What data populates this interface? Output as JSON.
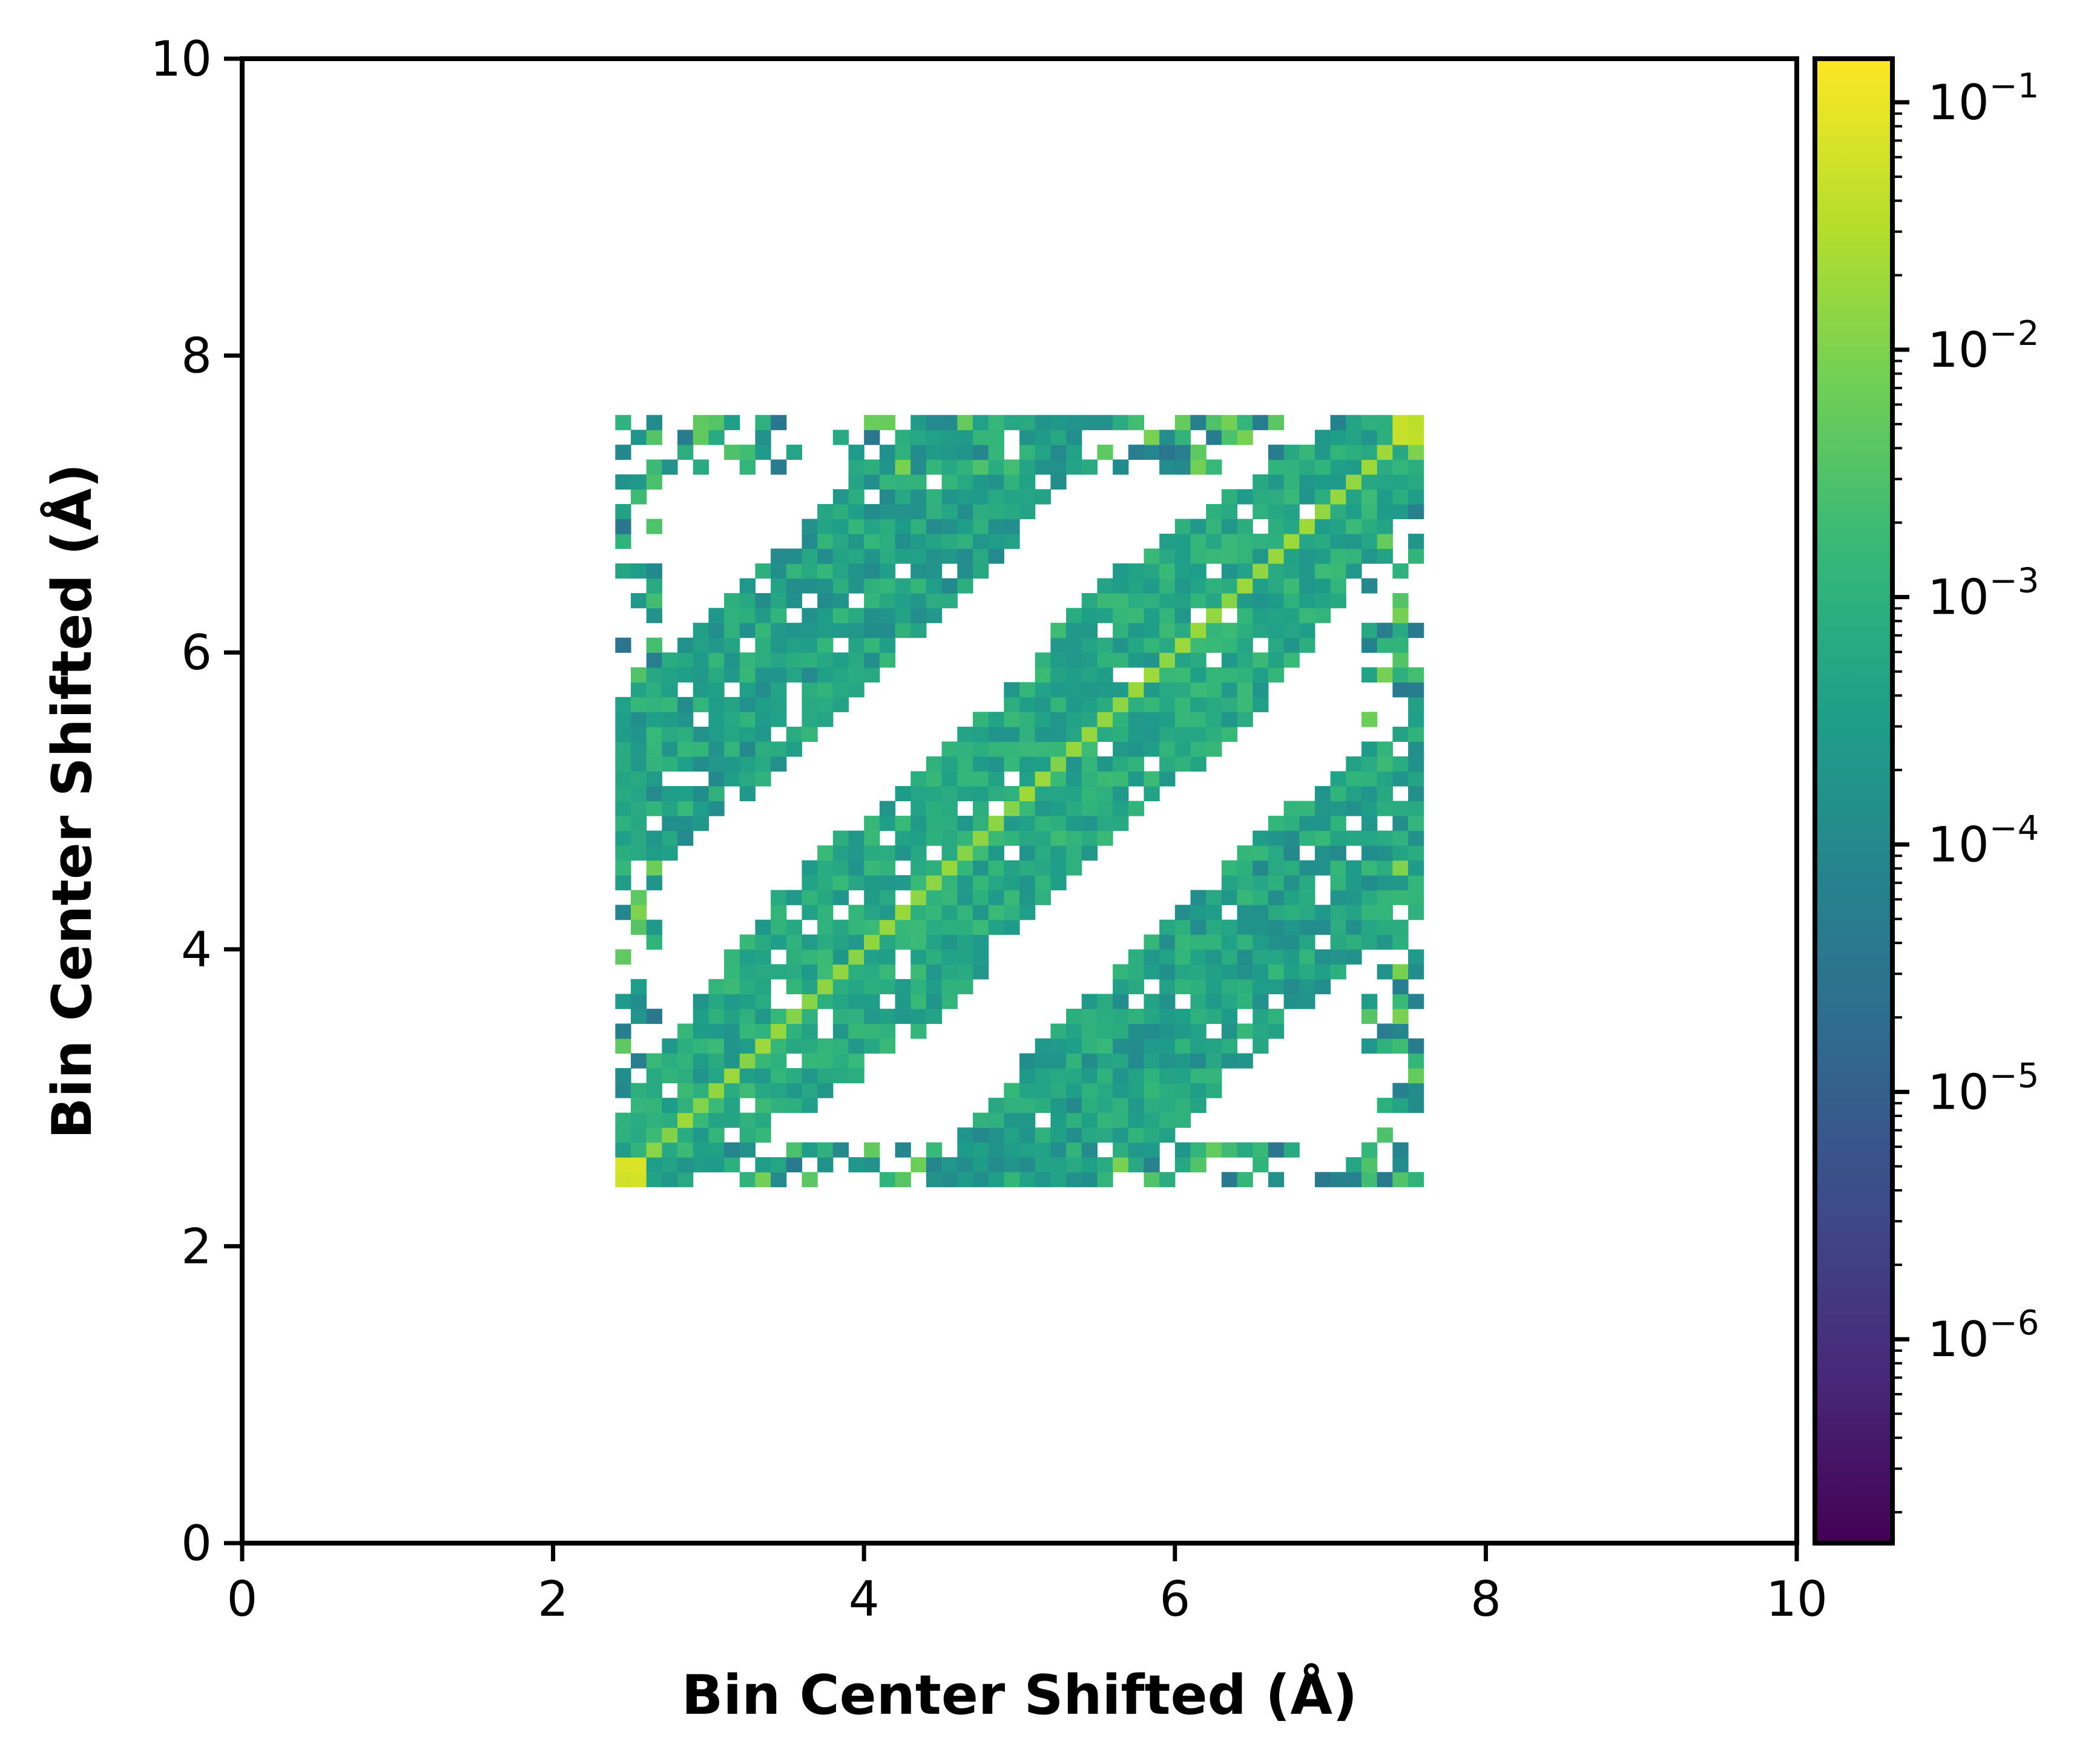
{
  "chart_data": {
    "type": "heatmap",
    "title": "",
    "xlabel": "Bin Center Shifted (Å)",
    "ylabel": "Bin Center Shifted (Å)",
    "xlim": [
      0,
      10
    ],
    "ylim": [
      0,
      10
    ],
    "x_ticks": [
      "0",
      "2",
      "4",
      "6",
      "8",
      "10"
    ],
    "y_ticks": [
      "0",
      "2",
      "4",
      "6",
      "8",
      "10"
    ],
    "data_extent": [
      2.4,
      7.6
    ],
    "bin_width": 0.1,
    "colormap": "viridis",
    "colorbar": {
      "scale": "log",
      "range": [
        1.5e-07,
        0.15
      ],
      "tick_exponents": [
        "−1",
        "−2",
        "−3",
        "−4",
        "−5",
        "−6"
      ],
      "tick_values": [
        0.1,
        0.01,
        0.001,
        0.0001,
        1e-05,
        1e-06
      ],
      "tick_base": "10"
    },
    "description_values": {
      "diagonal_peak": 0.02,
      "corner_peaks": [
        [
          2.5,
          2.5,
          0.08
        ],
        [
          7.5,
          7.5,
          0.05
        ]
      ],
      "off_diagonal_bands": [
        {
          "offset": 2.5,
          "level": 0.0004
        },
        {
          "offset": -2.5,
          "level": 0.0004
        }
      ],
      "main_band_level": 0.0006,
      "edge_scatter_level": 0.001
    }
  },
  "colors": {
    "viridis": [
      "#440154",
      "#482878",
      "#3e4989",
      "#31688e",
      "#26828e",
      "#1f9e89",
      "#35b779",
      "#6ece58",
      "#b5de2b",
      "#fde725"
    ],
    "axis": "#000000",
    "background": "#ffffff"
  }
}
